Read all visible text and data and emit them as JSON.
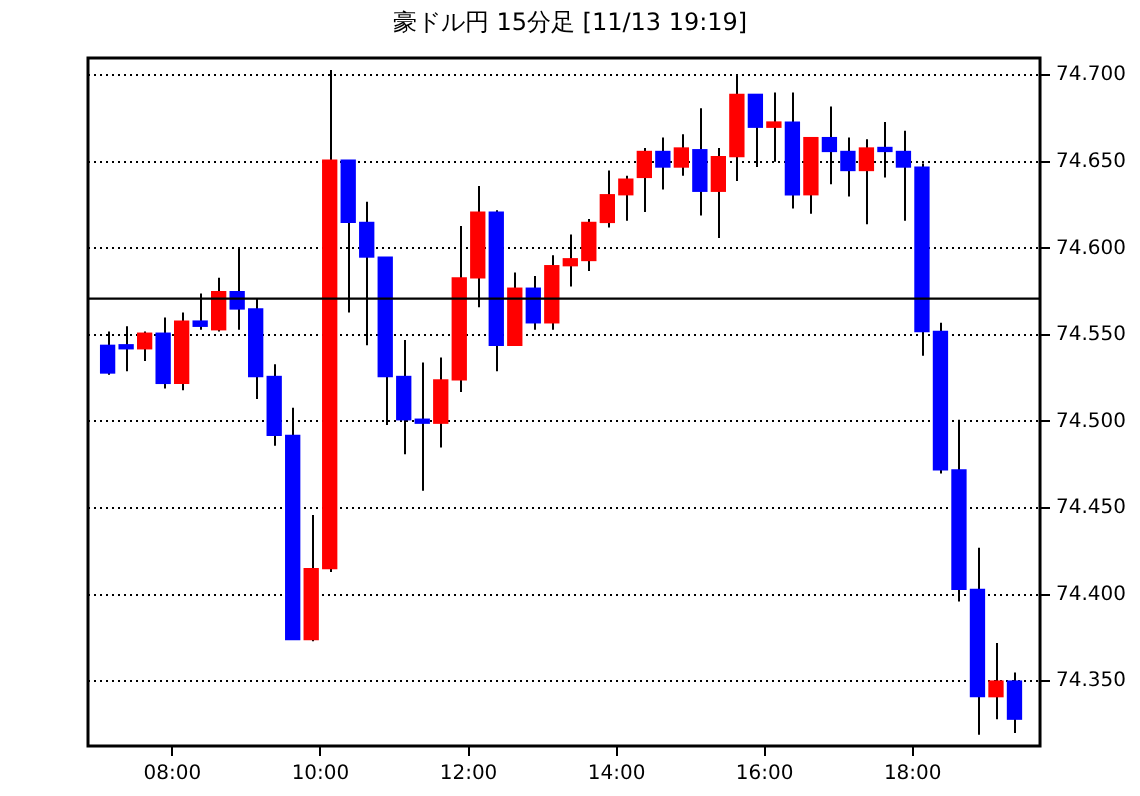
{
  "chart_data": {
    "type": "candlestick",
    "title": "豪ドル円 15分足 [11/13 19:19]",
    "x": [
      7.125,
      7.375,
      7.625,
      7.875,
      8.125,
      8.375,
      8.625,
      8.875,
      9.125,
      9.375,
      9.625,
      9.875,
      10.125,
      10.375,
      10.625,
      10.875,
      11.125,
      11.375,
      11.625,
      11.875,
      12.125,
      12.375,
      12.625,
      12.875,
      13.125,
      13.375,
      13.625,
      13.875,
      14.125,
      14.375,
      14.625,
      14.875,
      15.125,
      15.375,
      15.625,
      15.875,
      16.125,
      16.375,
      16.625,
      16.875,
      17.125,
      17.375,
      17.625,
      17.875,
      18.125,
      18.375,
      18.625,
      18.875,
      19.125,
      19.375
    ],
    "ohlc": [
      [
        74.544,
        74.552,
        74.527,
        74.528
      ],
      [
        74.543,
        74.555,
        74.529,
        74.542
      ],
      [
        74.542,
        74.552,
        74.535,
        74.551
      ],
      [
        74.551,
        74.56,
        74.519,
        74.522
      ],
      [
        74.522,
        74.563,
        74.518,
        74.558
      ],
      [
        74.558,
        74.574,
        74.553,
        74.555
      ],
      [
        74.553,
        74.583,
        74.552,
        74.575
      ],
      [
        74.575,
        74.6,
        74.553,
        74.565
      ],
      [
        74.565,
        74.571,
        74.513,
        74.526
      ],
      [
        74.526,
        74.533,
        74.486,
        74.492
      ],
      [
        74.492,
        74.508,
        74.374,
        74.374
      ],
      [
        74.374,
        74.446,
        74.373,
        74.415
      ],
      [
        74.415,
        74.703,
        74.413,
        74.651
      ],
      [
        74.651,
        74.651,
        74.563,
        74.615
      ],
      [
        74.615,
        74.627,
        74.544,
        74.595
      ],
      [
        74.595,
        74.595,
        74.498,
        74.526
      ],
      [
        74.526,
        74.547,
        74.481,
        74.501
      ],
      [
        74.501,
        74.534,
        74.46,
        74.499
      ],
      [
        74.499,
        74.537,
        74.485,
        74.524
      ],
      [
        74.524,
        74.613,
        74.517,
        74.583
      ],
      [
        74.583,
        74.636,
        74.566,
        74.621
      ],
      [
        74.621,
        74.622,
        74.529,
        74.544
      ],
      [
        74.544,
        74.586,
        74.544,
        74.577
      ],
      [
        74.577,
        74.584,
        74.553,
        74.557
      ],
      [
        74.557,
        74.596,
        74.553,
        74.59
      ],
      [
        74.59,
        74.608,
        74.578,
        74.594
      ],
      [
        74.593,
        74.617,
        74.587,
        74.615
      ],
      [
        74.615,
        74.645,
        74.612,
        74.631
      ],
      [
        74.631,
        74.642,
        74.616,
        74.64
      ],
      [
        74.641,
        74.658,
        74.621,
        74.656
      ],
      [
        74.656,
        74.664,
        74.634,
        74.647
      ],
      [
        74.647,
        74.666,
        74.642,
        74.658
      ],
      [
        74.657,
        74.681,
        74.619,
        74.633
      ],
      [
        74.633,
        74.658,
        74.606,
        74.653
      ],
      [
        74.653,
        74.7,
        74.639,
        74.689
      ],
      [
        74.689,
        74.689,
        74.647,
        74.67
      ],
      [
        74.67,
        74.69,
        74.65,
        74.673
      ],
      [
        74.673,
        74.69,
        74.623,
        74.631
      ],
      [
        74.631,
        74.664,
        74.62,
        74.664
      ],
      [
        74.664,
        74.682,
        74.637,
        74.656
      ],
      [
        74.656,
        74.664,
        74.63,
        74.645
      ],
      [
        74.645,
        74.663,
        74.614,
        74.658
      ],
      [
        74.658,
        74.673,
        74.641,
        74.656
      ],
      [
        74.656,
        74.668,
        74.616,
        74.647
      ],
      [
        74.647,
        74.649,
        74.538,
        74.552
      ],
      [
        74.552,
        74.557,
        74.47,
        74.472
      ],
      [
        74.472,
        74.501,
        74.396,
        74.403
      ],
      [
        74.403,
        74.427,
        74.319,
        74.341
      ],
      [
        74.341,
        74.372,
        74.328,
        74.35
      ],
      [
        74.35,
        74.355,
        74.32,
        74.328
      ]
    ],
    "colors": [
      "#0000ff",
      "#0000ff",
      "#ff0000",
      "#0000ff",
      "#ff0000",
      "#0000ff",
      "#ff0000",
      "#0000ff",
      "#0000ff",
      "#0000ff",
      "#0000ff",
      "#ff0000",
      "#ff0000",
      "#0000ff",
      "#0000ff",
      "#0000ff",
      "#0000ff",
      "#0000ff",
      "#ff0000",
      "#ff0000",
      "#ff0000",
      "#0000ff",
      "#ff0000",
      "#0000ff",
      "#ff0000",
      "#ff0000",
      "#ff0000",
      "#ff0000",
      "#ff0000",
      "#ff0000",
      "#0000ff",
      "#ff0000",
      "#0000ff",
      "#ff0000",
      "#ff0000",
      "#0000ff",
      "#ff0000",
      "#0000ff",
      "#ff0000",
      "#0000ff",
      "#0000ff",
      "#ff0000",
      "#0000ff",
      "#0000ff",
      "#0000ff",
      "#0000ff",
      "#0000ff",
      "#0000ff",
      "#ff0000",
      "#0000ff"
    ],
    "xlim": [
      6.86,
      19.72
    ],
    "xticks": [
      {
        "value": 8,
        "label": "08:00"
      },
      {
        "value": 10,
        "label": "10:00"
      },
      {
        "value": 12,
        "label": "12:00"
      },
      {
        "value": 14,
        "label": "14:00"
      },
      {
        "value": 16,
        "label": "16:00"
      },
      {
        "value": 18,
        "label": "18:00"
      }
    ],
    "ylim": [
      74.3125,
      74.71
    ],
    "yticks": [
      {
        "value": 74.35,
        "label": "74.350"
      },
      {
        "value": 74.4,
        "label": "74.400"
      },
      {
        "value": 74.45,
        "label": "74.450"
      },
      {
        "value": 74.5,
        "label": "74.500"
      },
      {
        "value": 74.55,
        "label": "74.550"
      },
      {
        "value": 74.6,
        "label": "74.600"
      },
      {
        "value": 74.65,
        "label": "74.650"
      },
      {
        "value": 74.7,
        "label": "74.700"
      }
    ],
    "ref_lines": [
      {
        "axis": "y",
        "value": 74.571,
        "color": "#000000"
      }
    ],
    "grid": "y"
  }
}
